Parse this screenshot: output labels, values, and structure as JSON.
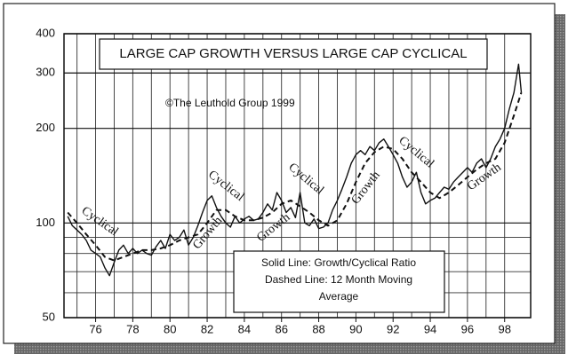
{
  "chart_data": {
    "type": "line",
    "title": "LARGE CAP GROWTH VERSUS LARGE CAP CYCLICAL",
    "subtitle": "©The Leuthold Group 1999",
    "log_scale": true,
    "grid": true,
    "xlim": [
      74.3,
      99.4
    ],
    "xticks": [
      76,
      78,
      80,
      82,
      84,
      86,
      88,
      90,
      92,
      94,
      96,
      98
    ],
    "xgrid": [
      75,
      76,
      77,
      78,
      79,
      80,
      81,
      82,
      83,
      84,
      85,
      86,
      87,
      88,
      89,
      90,
      91,
      92,
      93,
      94,
      95,
      96,
      97,
      98
    ],
    "ylim": [
      50,
      400
    ],
    "yticks": [
      50,
      100,
      200,
      300,
      400
    ],
    "yminor": [
      60,
      70,
      80,
      90
    ],
    "series": [
      {
        "color": "#111",
        "dashed": false,
        "x": [
          74.5,
          74.75,
          75,
          75.25,
          75.5,
          75.75,
          76,
          76.25,
          76.5,
          76.75,
          77,
          77.25,
          77.5,
          77.75,
          78,
          78.25,
          78.5,
          78.75,
          79,
          79.25,
          79.5,
          79.75,
          80,
          80.25,
          80.5,
          80.75,
          81,
          81.25,
          81.5,
          81.75,
          82,
          82.25,
          82.5,
          82.75,
          83,
          83.25,
          83.5,
          83.75,
          84,
          84.25,
          84.5,
          84.75,
          85,
          85.25,
          85.5,
          85.75,
          86,
          86.25,
          86.5,
          86.75,
          87,
          87.25,
          87.5,
          87.75,
          88,
          88.25,
          88.5,
          88.75,
          89,
          89.25,
          89.5,
          89.75,
          90,
          90.25,
          90.5,
          90.75,
          91,
          91.25,
          91.5,
          91.75,
          92,
          92.25,
          92.5,
          92.75,
          93,
          93.25,
          93.5,
          93.75,
          94,
          94.25,
          94.5,
          94.75,
          95,
          95.25,
          95.5,
          95.75,
          96,
          96.25,
          96.5,
          96.75,
          97,
          97.25,
          97.5,
          97.75,
          98,
          98.25,
          98.5,
          98.75,
          98.9
        ],
        "values": [
          105,
          98,
          95,
          92,
          88,
          82,
          80,
          78,
          72,
          68,
          75,
          82,
          85,
          80,
          83,
          80,
          82,
          80,
          79,
          84,
          88,
          83,
          92,
          88,
          90,
          95,
          85,
          90,
          98,
          108,
          118,
          122,
          112,
          105,
          100,
          97,
          105,
          100,
          103,
          105,
          102,
          103,
          108,
          115,
          110,
          125,
          118,
          108,
          112,
          104,
          125,
          100,
          98,
          103,
          96,
          97,
          100,
          110,
          118,
          128,
          140,
          155,
          165,
          170,
          165,
          175,
          170,
          180,
          185,
          175,
          165,
          155,
          140,
          130,
          135,
          145,
          125,
          115,
          118,
          120,
          125,
          130,
          128,
          135,
          140,
          145,
          150,
          145,
          155,
          160,
          150,
          160,
          175,
          185,
          200,
          230,
          260,
          320,
          260
        ]
      },
      {
        "color": "#111",
        "dashed": true,
        "x": [
          74.5,
          75,
          75.5,
          76,
          76.5,
          77,
          77.5,
          78,
          78.5,
          79,
          79.5,
          80,
          80.5,
          81,
          81.5,
          82,
          82.5,
          83,
          83.5,
          84,
          84.5,
          85,
          85.5,
          86,
          86.5,
          87,
          87.5,
          88,
          88.5,
          89,
          89.5,
          90,
          90.5,
          91,
          91.5,
          92,
          92.5,
          93,
          93.5,
          94,
          94.5,
          95,
          95.5,
          96,
          96.5,
          97,
          97.5,
          98,
          98.5,
          98.9
        ],
        "values": [
          108,
          100,
          92,
          85,
          78,
          76,
          78,
          80,
          82,
          82,
          83,
          85,
          88,
          90,
          92,
          100,
          110,
          110,
          105,
          102,
          102,
          104,
          108,
          115,
          118,
          113,
          108,
          102,
          98,
          102,
          115,
          135,
          155,
          168,
          175,
          172,
          160,
          145,
          135,
          125,
          120,
          125,
          132,
          140,
          148,
          155,
          160,
          180,
          220,
          260
        ]
      }
    ],
    "annotations": [
      "Cyclical",
      "Growth",
      "Cyclical",
      "Growth",
      "Cyclical",
      "Growth",
      "Cyclical",
      "Growth"
    ],
    "legend_note": [
      "Solid Line: Growth/Cyclical Ratio",
      "Dashed Line: 12 Month Moving",
      "Average"
    ]
  }
}
